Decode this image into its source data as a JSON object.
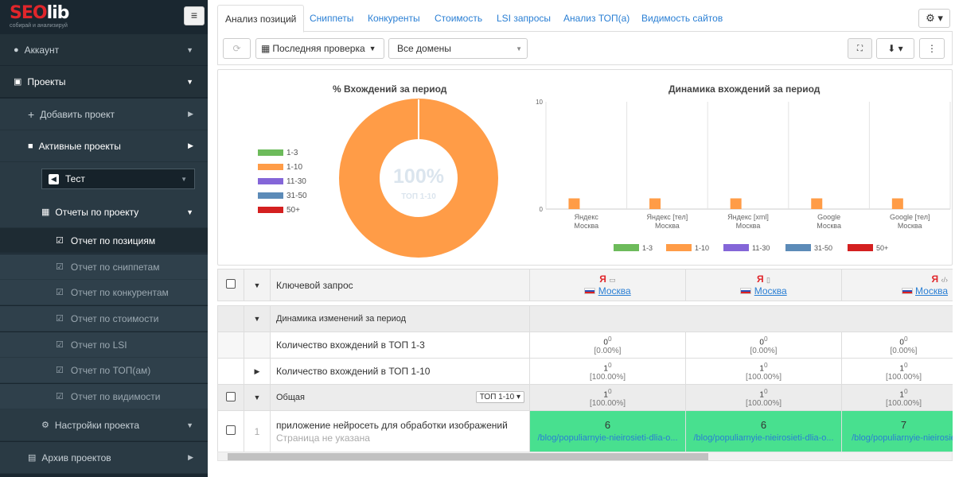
{
  "logo": {
    "brand": "SEOlib",
    "tagline": "собирай и анализируй"
  },
  "sidebar": {
    "account": "Аккаунт",
    "projects": "Проекты",
    "add_project": "Добавить проект",
    "active_projects": "Активные проекты",
    "selected_project": "Тест",
    "reports": "Отчеты по проекту",
    "report_items": [
      "Отчет по позициям",
      "Отчет по сниппетам",
      "Отчет по конкурентам",
      "Отчет по стоимости",
      "Отчет по LSI",
      "Отчет по ТОП(ам)",
      "Отчет по видимости"
    ],
    "project_settings": "Настройки проекта",
    "archive": "Архив проектов"
  },
  "tabs": [
    "Анализ позиций",
    "Сниппеты",
    "Конкуренты",
    "Стоимость",
    "LSI запросы",
    "Анализ ТОП(а)",
    "Видимость сайтов"
  ],
  "toolbar": {
    "check_select": "Последняя проверка",
    "domain_select": "Все домены"
  },
  "donut": {
    "title": "% Вхождений за период",
    "center_value": "100%",
    "center_label": "ТОП 1-10",
    "legend": [
      {
        "label": "1-3",
        "color": "#6dbb5b"
      },
      {
        "label": "1-10",
        "color": "#ff9c47"
      },
      {
        "label": "11-30",
        "color": "#8466d8"
      },
      {
        "label": "31-50",
        "color": "#5c8bb8"
      },
      {
        "label": "50+",
        "color": "#d42020"
      }
    ]
  },
  "chart_data": {
    "type": "bar",
    "title": "Динамика вхождений за период",
    "categories": [
      "Яндекс Москва",
      "Яндекс [тел] Москва",
      "Яндекс [xml] Москва",
      "Google Москва",
      "Google [тел] Москва"
    ],
    "category_lines": [
      [
        "Яндекс",
        "Москва"
      ],
      [
        "Яндекс [тел]",
        "Москва"
      ],
      [
        "Яндекс [xml]",
        "Москва"
      ],
      [
        "Google",
        "Москва"
      ],
      [
        "Google [тел]",
        "Москва"
      ]
    ],
    "series": [
      {
        "name": "1-3",
        "color": "#6dbb5b",
        "values": [
          0,
          0,
          0,
          0,
          0
        ]
      },
      {
        "name": "1-10",
        "color": "#ff9c47",
        "values": [
          1,
          1,
          1,
          1,
          1
        ]
      },
      {
        "name": "11-30",
        "color": "#8466d8",
        "values": [
          0,
          0,
          0,
          0,
          0
        ]
      },
      {
        "name": "31-50",
        "color": "#5c8bb8",
        "values": [
          0,
          0,
          0,
          0,
          0
        ]
      },
      {
        "name": "50+",
        "color": "#d42020",
        "values": [
          0,
          0,
          0,
          0,
          0
        ]
      }
    ],
    "ylim": [
      0,
      10
    ],
    "yticks": [
      "0",
      "10"
    ],
    "legend_position": "bottom"
  },
  "table": {
    "keyword_header": "Ключевой запрос",
    "engine_mark": "Я",
    "region": "Москва",
    "dynamics_label": "Динамика изменений за период",
    "rows": [
      {
        "label": "Количество вхождений в ТОП 1-3",
        "values": [
          "0",
          "0",
          "0"
        ],
        "deltas": [
          "0",
          "0",
          "0"
        ],
        "percents": [
          "[0.00%]",
          "[0.00%]",
          "[0.00%]"
        ]
      },
      {
        "label": "Количество вхождений в ТОП 1-10",
        "values": [
          "1",
          "1",
          "1"
        ],
        "deltas": [
          "0",
          "0",
          "0"
        ],
        "percents": [
          "[100.00%]",
          "[100.00%]",
          "[100.00%]"
        ]
      }
    ],
    "general": {
      "label": "Общая",
      "select": "ТОП 1-10",
      "values": [
        "1",
        "1",
        "1"
      ],
      "deltas": [
        "0",
        "0",
        "0"
      ],
      "percents": [
        "[100.00%]",
        "[100.00%]",
        "[100.00%]"
      ]
    },
    "query_row": {
      "num": "1",
      "query": "приложение нейросеть для обработки изображений",
      "page": "Страница не указана",
      "positions": [
        "6",
        "6",
        "7"
      ],
      "urls": [
        "/blog/populiarnyie-nieirosieti-dlia-o...",
        "/blog/populiarnyie-nieirosieti-dlia-o...",
        "/blog/populiarnyie-nieirosie"
      ]
    }
  }
}
